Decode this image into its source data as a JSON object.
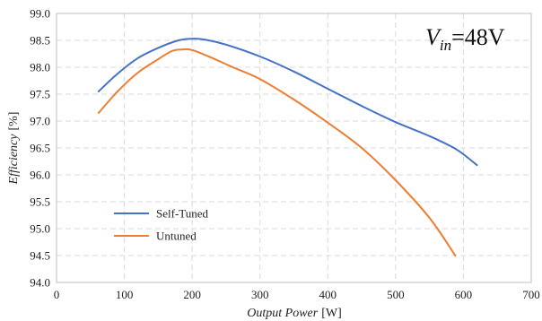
{
  "chart_data": {
    "type": "line",
    "title": "",
    "annotation": {
      "symbol": "V",
      "subscript": "in",
      "text": "=48V"
    },
    "xlabel": {
      "italic": "Output Power",
      "unit": "[W]"
    },
    "ylabel": {
      "italic": "Efficiency",
      "unit": "[%]"
    },
    "xlim": [
      0,
      700
    ],
    "ylim": [
      94.0,
      99.0
    ],
    "xticks": [
      0,
      100,
      200,
      300,
      400,
      500,
      600,
      700
    ],
    "yticks": [
      94.0,
      94.5,
      95.0,
      95.5,
      96.0,
      96.5,
      97.0,
      97.5,
      98.0,
      98.5,
      99.0
    ],
    "xtick_labels": [
      "0",
      "100",
      "200",
      "300",
      "400",
      "500",
      "600",
      "700"
    ],
    "ytick_labels": [
      "94.0",
      "94.5",
      "95.0",
      "95.5",
      "96.0",
      "96.5",
      "97.0",
      "97.5",
      "98.0",
      "98.5",
      "99.0"
    ],
    "grid": true,
    "legend": "bottom-left",
    "series": [
      {
        "name": "Self-Tuned",
        "color": "#4472C4",
        "points": [
          [
            62,
            97.55
          ],
          [
            90,
            97.88
          ],
          [
            120,
            98.17
          ],
          [
            150,
            98.36
          ],
          [
            180,
            98.5
          ],
          [
            200,
            98.53
          ],
          [
            220,
            98.51
          ],
          [
            250,
            98.42
          ],
          [
            300,
            98.2
          ],
          [
            350,
            97.92
          ],
          [
            400,
            97.6
          ],
          [
            450,
            97.28
          ],
          [
            500,
            96.98
          ],
          [
            550,
            96.72
          ],
          [
            590,
            96.47
          ],
          [
            620,
            96.18
          ]
        ]
      },
      {
        "name": "Untuned",
        "color": "#ED7D31",
        "points": [
          [
            62,
            97.15
          ],
          [
            90,
            97.55
          ],
          [
            120,
            97.9
          ],
          [
            150,
            98.15
          ],
          [
            170,
            98.3
          ],
          [
            185,
            98.33
          ],
          [
            200,
            98.32
          ],
          [
            230,
            98.17
          ],
          [
            260,
            98.0
          ],
          [
            300,
            97.78
          ],
          [
            350,
            97.4
          ],
          [
            400,
            96.97
          ],
          [
            450,
            96.5
          ],
          [
            500,
            95.9
          ],
          [
            550,
            95.2
          ],
          [
            588,
            94.5
          ]
        ]
      }
    ]
  }
}
